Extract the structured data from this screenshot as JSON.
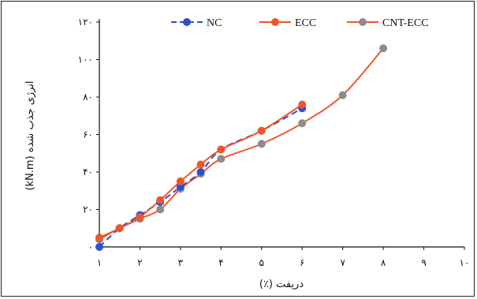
{
  "chart_data": {
    "type": "line",
    "xlabel": "دریفت (٪)",
    "ylabel": "انرژی جذب شده (kN.m)",
    "xlim": [
      1,
      10
    ],
    "ylim": [
      0,
      120
    ],
    "x_ticks": [
      1,
      2,
      3,
      4,
      5,
      6,
      7,
      8,
      9,
      10
    ],
    "x_tick_labels": [
      "١",
      "٢",
      "٣",
      "۴",
      "۵",
      "۶",
      "٧",
      "٨",
      "٩",
      "١٠"
    ],
    "y_ticks": [
      0,
      20,
      40,
      60,
      80,
      100,
      120
    ],
    "y_tick_labels": [
      "٠",
      "٢٠",
      "۴٠",
      "۶٠",
      "٨٠",
      "١٠٠",
      "١٢٠"
    ],
    "grid": false,
    "legend_position": "top",
    "series": [
      {
        "name": "NC",
        "color": "#2f4fd3",
        "line_style": "dashed",
        "x": [
          1,
          1.5,
          2,
          2.5,
          3,
          3.5,
          4,
          5,
          6
        ],
        "y": [
          0,
          10,
          17,
          24,
          32,
          40,
          52,
          62,
          74
        ]
      },
      {
        "name": "ECC",
        "color": "#f0562a",
        "line_style": "solid",
        "x": [
          1,
          1.5,
          2,
          2.5,
          3,
          3.5,
          4,
          5,
          6
        ],
        "y": [
          5,
          10,
          16,
          25,
          35,
          44,
          52,
          62,
          76
        ]
      },
      {
        "name": "CNT-ECC",
        "color": "#8c8c8c",
        "marker_only": true,
        "line_color": "#f0562a",
        "line_style": "solid",
        "x": [
          1,
          1.5,
          2,
          2.5,
          3,
          3.5,
          4,
          5,
          6,
          7,
          8
        ],
        "y": [
          4,
          10,
          15,
          20,
          31,
          39,
          47,
          55,
          66,
          81,
          106
        ]
      }
    ]
  }
}
